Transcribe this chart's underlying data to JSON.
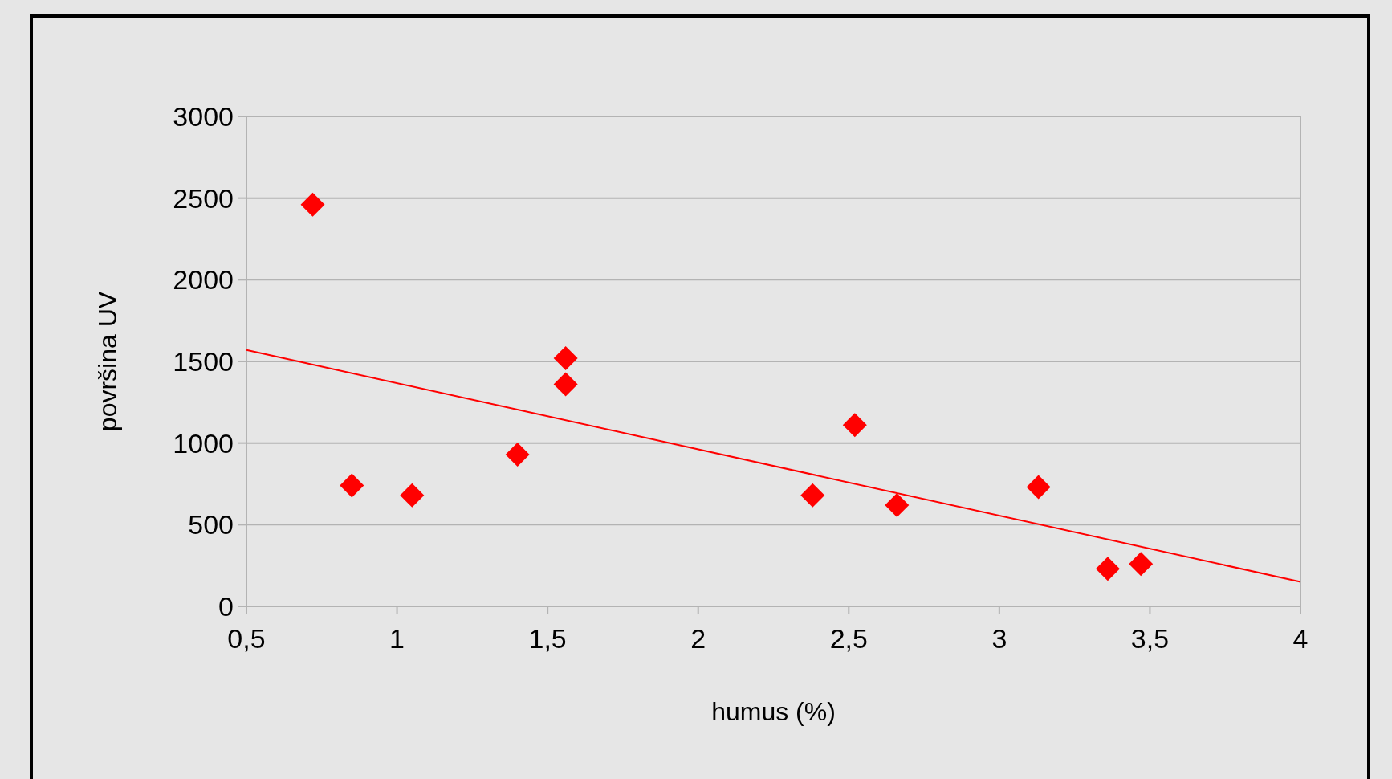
{
  "chart_data": {
    "type": "scatter",
    "xlabel": "humus (%)",
    "ylabel": "površina UV",
    "xlim": [
      0.5,
      4
    ],
    "xticks": [
      {
        "value": 0.5,
        "label": "0,5"
      },
      1,
      {
        "value": 1.5,
        "label": "1,5"
      },
      2,
      {
        "value": 2.5,
        "label": "2,5"
      },
      3,
      {
        "value": 3.5,
        "label": "3,5"
      },
      4
    ],
    "ylim": [
      0,
      3000
    ],
    "yticks": [
      0,
      500,
      1000,
      1500,
      2000,
      2500,
      3000
    ],
    "grid": "y",
    "legend": false,
    "series": [
      {
        "color": "#ff0000",
        "marker": "diamond",
        "x": [
          0.72,
          0.85,
          1.05,
          1.4,
          1.56,
          1.56,
          2.38,
          2.52,
          2.66,
          3.13,
          3.36,
          3.47
        ],
        "values": [
          2460,
          740,
          680,
          930,
          1520,
          1360,
          680,
          1110,
          620,
          730,
          230,
          260
        ]
      },
      {
        "type": "line",
        "color": "#ff0000",
        "marker": "none",
        "line_style": "solid",
        "x": [
          0.5,
          4
        ],
        "values": [
          1570,
          150
        ]
      }
    ]
  }
}
